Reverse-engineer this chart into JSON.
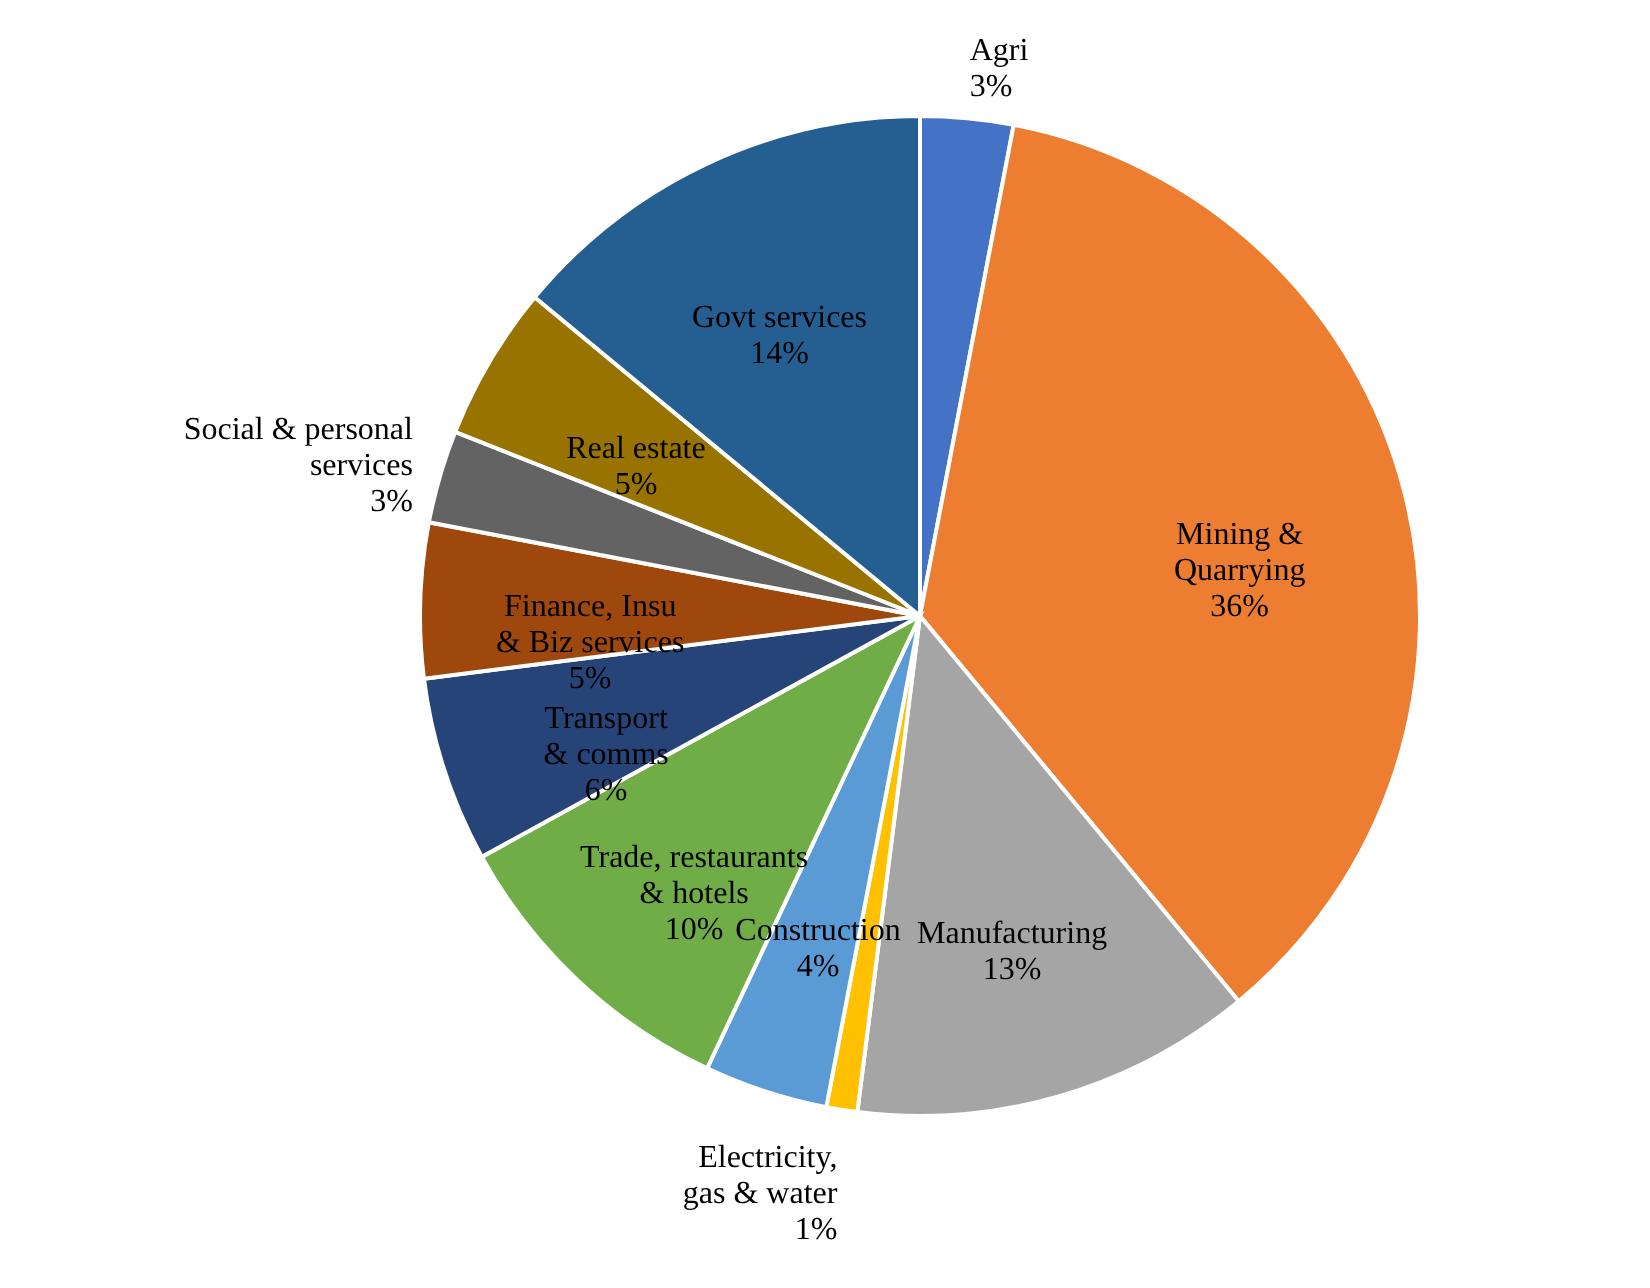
{
  "chart_data": {
    "type": "pie",
    "categories": [
      "Agri",
      "Mining & Quarrying",
      "Manufacturing",
      "Electricity, gas & water",
      "Construction",
      "Trade, restaurants & hotels",
      "Transport & comms",
      "Finance, Insu & Biz services",
      "Social & personal services",
      "Real estate",
      "Govt services"
    ],
    "values": [
      3,
      36,
      13,
      1,
      4,
      10,
      6,
      5,
      3,
      5,
      14
    ],
    "value_labels": [
      "3%",
      "36%",
      "13%",
      "1%",
      "4%",
      "10%",
      "6%",
      "5%",
      "3%",
      "5%",
      "14%"
    ],
    "colors": [
      "#4472c4",
      "#ed7d31",
      "#a5a5a5",
      "#ffc000",
      "#5b9bd5",
      "#70ad47",
      "#264478",
      "#9e480e",
      "#636363",
      "#997300",
      "#255e91"
    ]
  }
}
